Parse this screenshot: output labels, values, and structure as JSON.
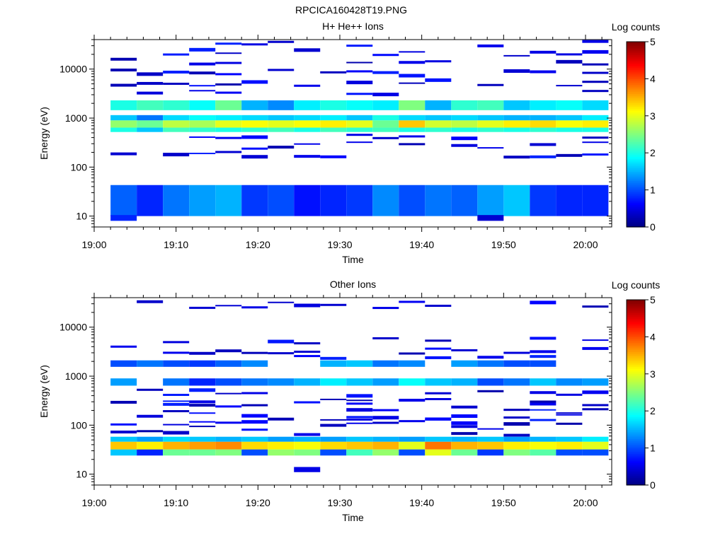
{
  "figure_title": "RPCICA160428T19.PNG",
  "chart_data": [
    {
      "type": "heatmap",
      "title": "H+ He++ Ions",
      "xlabel": "Time",
      "ylabel": "Energy (eV)",
      "x_ticks": [
        "19:00",
        "19:10",
        "19:20",
        "19:30",
        "19:40",
        "19:50",
        "20:00"
      ],
      "x_tick_minutes": [
        0,
        10,
        20,
        30,
        40,
        50,
        60
      ],
      "xlim_minutes": [
        0,
        63.2
      ],
      "y_scale": "log",
      "ylim": [
        6,
        40000
      ],
      "y_ticks": [
        "10",
        "100",
        "1000",
        "10000"
      ],
      "colorbar": {
        "label": "Log counts",
        "range": [
          0,
          5
        ],
        "ticks": [
          "0",
          "1",
          "2",
          "3",
          "4",
          "5"
        ]
      },
      "time_bins_minutes": [
        [
          2.0,
          5.2
        ],
        [
          5.2,
          8.4
        ],
        [
          8.4,
          11.6
        ],
        [
          11.6,
          14.8
        ],
        [
          14.8,
          18.0
        ],
        [
          18.0,
          21.2
        ],
        [
          21.2,
          24.4
        ],
        [
          24.4,
          27.6
        ],
        [
          27.6,
          30.8
        ],
        [
          30.8,
          34.0
        ],
        [
          34.0,
          37.2
        ],
        [
          37.2,
          40.4
        ],
        [
          40.4,
          43.6
        ],
        [
          43.6,
          46.8
        ],
        [
          46.8,
          50.0
        ],
        [
          50.0,
          53.2
        ],
        [
          53.2,
          56.4
        ],
        [
          56.4,
          59.6
        ],
        [
          59.6,
          62.8
        ]
      ],
      "bands": [
        {
          "e_low": 10,
          "e_high": 43,
          "values": [
            1.1,
            0.8,
            1.2,
            1.4,
            1.5,
            0.9,
            1.0,
            0.7,
            0.8,
            0.9,
            1.3,
            1.0,
            1.2,
            1.1,
            1.4,
            1.6,
            0.9,
            0.8,
            0.8
          ]
        },
        {
          "e_low": 520,
          "e_high": 640,
          "values": [
            2.0,
            1.6,
            2.2,
            2.1,
            2.0,
            2.1,
            2.2,
            2.0,
            2.2,
            2.1,
            2.2,
            2.0,
            2.1,
            2.0,
            2.1,
            2.0,
            2.1,
            2.0,
            2.0
          ]
        },
        {
          "e_low": 640,
          "e_high": 900,
          "values": [
            2.6,
            2.4,
            2.8,
            2.7,
            3.0,
            3.1,
            3.0,
            3.1,
            3.2,
            3.0,
            2.4,
            3.4,
            2.9,
            2.8,
            3.0,
            3.2,
            3.3,
            3.1,
            3.2
          ]
        },
        {
          "e_low": 900,
          "e_high": 1150,
          "values": [
            1.6,
            1.2,
            1.7,
            1.9,
            1.8,
            1.7,
            1.6,
            1.7,
            1.8,
            1.6,
            2.0,
            1.7,
            1.6,
            1.7,
            1.6,
            1.5,
            1.5,
            1.6,
            1.8
          ]
        },
        {
          "e_low": 1450,
          "e_high": 2300,
          "values": [
            2.0,
            2.2,
            2.1,
            1.9,
            2.4,
            1.5,
            1.3,
            1.8,
            2.0,
            1.9,
            1.8,
            2.5,
            1.5,
            2.1,
            2.2,
            1.6,
            1.8,
            1.9,
            1.7
          ]
        },
        {
          "e_low": 8,
          "e_high": 10.5,
          "values": [
            0.8,
            null,
            null,
            null,
            null,
            null,
            null,
            null,
            null,
            null,
            null,
            null,
            null,
            null,
            0.4,
            null,
            null,
            null,
            null
          ]
        }
      ],
      "sparse_energies": [
        180,
        280,
        420,
        3200,
        5200,
        8500,
        14000,
        22000,
        33000
      ]
    },
    {
      "type": "heatmap",
      "title": "Other Ions",
      "xlabel": "Time",
      "ylabel": "Energy (eV)",
      "x_ticks": [
        "19:00",
        "19:10",
        "19:20",
        "19:30",
        "19:40",
        "19:50",
        "20:00"
      ],
      "x_tick_minutes": [
        0,
        10,
        20,
        30,
        40,
        50,
        60
      ],
      "xlim_minutes": [
        0,
        63.2
      ],
      "y_scale": "log",
      "ylim": [
        6,
        40000
      ],
      "y_ticks": [
        "10",
        "100",
        "1000",
        "10000"
      ],
      "colorbar": {
        "label": "Log counts",
        "range": [
          0,
          5
        ],
        "ticks": [
          "0",
          "1",
          "2",
          "3",
          "4",
          "5"
        ]
      },
      "time_bins_minutes": [
        [
          2.0,
          5.2
        ],
        [
          5.2,
          8.4
        ],
        [
          8.4,
          11.6
        ],
        [
          11.6,
          14.8
        ],
        [
          14.8,
          18.0
        ],
        [
          18.0,
          21.2
        ],
        [
          21.2,
          24.4
        ],
        [
          24.4,
          27.6
        ],
        [
          27.6,
          30.8
        ],
        [
          30.8,
          34.0
        ],
        [
          34.0,
          37.2
        ],
        [
          37.2,
          40.4
        ],
        [
          40.4,
          43.6
        ],
        [
          43.6,
          46.8
        ],
        [
          46.8,
          50.0
        ],
        [
          50.0,
          53.2
        ],
        [
          53.2,
          56.4
        ],
        [
          56.4,
          59.6
        ],
        [
          59.6,
          62.8
        ]
      ],
      "bands": [
        {
          "e_low": 24,
          "e_high": 32,
          "values": [
            1.6,
            0.8,
            2.4,
            2.4,
            2.5,
            1.0,
            2.6,
            2.5,
            1.0,
            2.2,
            2.6,
            1.0,
            3.0,
            2.4,
            0.9,
            2.5,
            2.3,
            1.0,
            1.0
          ]
        },
        {
          "e_low": 32,
          "e_high": 46,
          "values": [
            3.4,
            3.2,
            3.5,
            3.6,
            3.7,
            3.3,
            3.2,
            3.1,
            3.3,
            3.4,
            3.5,
            3.0,
            3.8,
            3.5,
            3.4,
            3.2,
            3.1,
            3.2,
            3.0
          ]
        },
        {
          "e_low": 46,
          "e_high": 58,
          "values": [
            1.6,
            1.4,
            1.7,
            1.6,
            1.5,
            1.6,
            1.4,
            1.5,
            1.4,
            1.6,
            1.5,
            1.4,
            1.6,
            1.5,
            1.6,
            1.4,
            1.5,
            1.6,
            1.8
          ]
        },
        {
          "e_low": 640,
          "e_high": 900,
          "values": [
            1.4,
            null,
            1.2,
            0.8,
            1.0,
            1.2,
            1.3,
            1.5,
            1.8,
            1.6,
            1.4,
            1.9,
            1.6,
            1.5,
            1.0,
            1.2,
            1.6,
            1.3,
            1.4
          ]
        },
        {
          "e_low": 1550,
          "e_high": 2100,
          "values": [
            1.0,
            1.2,
            1.0,
            0.9,
            1.1,
            1.3,
            null,
            null,
            1.5,
            1.6,
            1.2,
            1.3,
            null,
            1.4,
            1.2,
            1.0,
            1.0,
            null,
            null
          ]
        },
        {
          "e_low": 11,
          "e_high": 14,
          "values": [
            null,
            null,
            null,
            null,
            null,
            null,
            null,
            0.5,
            null,
            null,
            null,
            null,
            null,
            null,
            null,
            null,
            null,
            null,
            null
          ]
        }
      ],
      "sparse_energies": [
        70,
        95,
        120,
        150,
        200,
        260,
        330,
        460,
        2700,
        3500,
        5200,
        29000
      ]
    }
  ]
}
